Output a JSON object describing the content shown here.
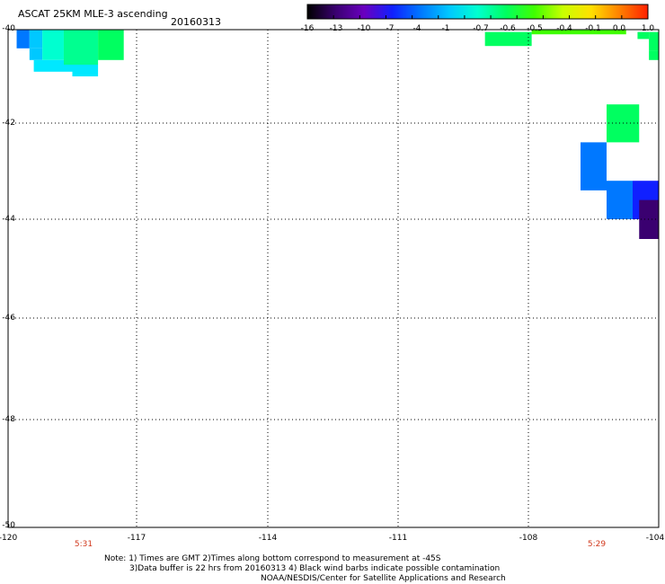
{
  "header": {
    "title": "ASCAT 25KM MLE-3 ascending",
    "date": "20160313"
  },
  "colorbar": {
    "tick_labels": [
      "-16",
      "-13",
      "-10",
      "-7",
      "-4",
      "-1",
      "-0.7",
      "-0.6",
      "-0.5",
      "-0.4",
      "-0.1",
      "0.0",
      "1.0"
    ],
    "colors": [
      "#000000",
      "#3a0070",
      "#6a00c0",
      "#1020ff",
      "#0078ff",
      "#00c8ff",
      "#00ffd0",
      "#00ff60",
      "#40ff00",
      "#c8ff00",
      "#ffe000",
      "#ff8000",
      "#ff2000"
    ]
  },
  "map": {
    "lat_labels": [
      "-40",
      "-42",
      "-44",
      "-46",
      "-48",
      "-50"
    ],
    "lon_labels": [
      "-120",
      "-117",
      "-114",
      "-111",
      "-108",
      "-104"
    ],
    "time_labels": [
      "5:31",
      "5:29"
    ],
    "cells": [
      {
        "lon": [
          -119.8,
          -119.5
        ],
        "lat": [
          -40.0,
          -40.4
        ],
        "color": "#0078ff"
      },
      {
        "lon": [
          -119.5,
          -119.2
        ],
        "lat": [
          -40.0,
          -40.4
        ],
        "color": "#00c8ff"
      },
      {
        "lon": [
          -119.5,
          -119.2
        ],
        "lat": [
          -40.4,
          -40.65
        ],
        "color": "#00c8ff"
      },
      {
        "lon": [
          -119.2,
          -118.7
        ],
        "lat": [
          -40.0,
          -40.65
        ],
        "color": "#00ffd0"
      },
      {
        "lon": [
          -119.4,
          -118.5
        ],
        "lat": [
          -40.65,
          -40.9
        ],
        "color": "#00e8ff"
      },
      {
        "lon": [
          -118.5,
          -117.9
        ],
        "lat": [
          -40.75,
          -41.0
        ],
        "color": "#00e8ff"
      },
      {
        "lon": [
          -118.7,
          -117.9
        ],
        "lat": [
          -40.0,
          -40.75
        ],
        "color": "#00ff90"
      },
      {
        "lon": [
          -117.9,
          -117.3
        ],
        "lat": [
          -40.0,
          -40.65
        ],
        "color": "#00ff60"
      },
      {
        "lon": [
          -109.0,
          -107.9
        ],
        "lat": [
          -40.05,
          -40.35
        ],
        "color": "#00ff60"
      },
      {
        "lon": [
          -107.9,
          -105.0
        ],
        "lat": [
          -40.0,
          -40.1
        ],
        "color": "#40ff00"
      },
      {
        "lon": [
          -104.65,
          -104.3
        ],
        "lat": [
          -40.05,
          -40.2
        ],
        "color": "#00ff60"
      },
      {
        "lon": [
          -104.3,
          -104.0
        ],
        "lat": [
          -40.05,
          -40.45
        ],
        "color": "#00ff60"
      },
      {
        "lon": [
          -104.3,
          -104.0
        ],
        "lat": [
          -40.45,
          -40.65
        ],
        "color": "#00ff60"
      },
      {
        "lon": [
          -105.6,
          -104.6
        ],
        "lat": [
          -41.6,
          -42.4
        ],
        "color": "#00ff60"
      },
      {
        "lon": [
          -106.4,
          -105.6
        ],
        "lat": [
          -42.4,
          -43.4
        ],
        "color": "#0078ff"
      },
      {
        "lon": [
          -105.6,
          -104.8
        ],
        "lat": [
          -43.2,
          -44.0
        ],
        "color": "#0078ff"
      },
      {
        "lon": [
          -104.8,
          -104.0
        ],
        "lat": [
          -43.2,
          -44.0
        ],
        "color": "#1020ff"
      },
      {
        "lon": [
          -104.6,
          -104.0
        ],
        "lat": [
          -43.6,
          -44.4
        ],
        "color": "#3a0070"
      }
    ]
  },
  "notes": {
    "line1": "Note: 1) Times are GMT 2)Times along bottom correspond to measurement at -45S",
    "line2": "3)Data buffer is 22 hrs from 20160313 4) Black wind barbs indicate possible contamination",
    "line3": "NOAA/NESDIS/Center for Satellite Applications and Research"
  }
}
